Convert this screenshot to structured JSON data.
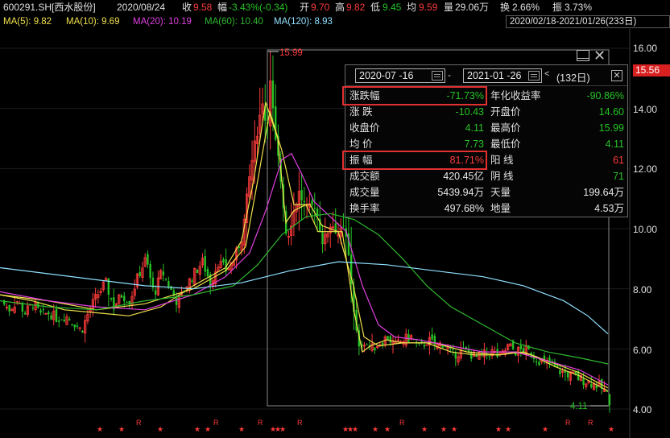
{
  "header": {
    "code": "600291.SH[西水股份]",
    "date": "2020/08/24",
    "close_label": "收",
    "close_value": "9.58",
    "change_label": "幅",
    "change_value": "-3.43%(-0.34)",
    "open_label": "开",
    "open_value": "9.70",
    "high_label": "高",
    "high_value": "9.82",
    "low_label": "低",
    "low_value": "9.45",
    "avg_label": "均",
    "avg_value": "9.59",
    "volume_label": "量",
    "volume_value": "29.06万",
    "turnover_label": "换",
    "turnover_value": "2.66%",
    "amplitude_label": "振",
    "amplitude_value": "3.73%"
  },
  "ma_bar": {
    "ma5": "MA(5): 9.82",
    "ma10": "MA(10): 9.69",
    "ma20": "MA(20): 10.19",
    "ma60": "MA(60): 10.40",
    "ma120": "MA(120): 8.93",
    "range": "2020/02/18-2021/01/26(233日)"
  },
  "colors": {
    "up": "#ff3b3b",
    "down": "#26c226",
    "ma5": "#f0e04c",
    "ma10": "#f0e04c",
    "ma20": "#e040e0",
    "ma60": "#2fb82f",
    "ma120": "#8fe0ff"
  },
  "chart_data": {
    "type": "candlestick",
    "x_range": [
      "2020/02/18",
      "2021/01/26"
    ],
    "trading_days": 233,
    "ylim": [
      4.0,
      16.0
    ],
    "y_ticks": [
      {
        "label": "16.00",
        "value": 16.0
      },
      {
        "label": "14.00",
        "value": 14.0
      },
      {
        "label": "12.00",
        "value": 12.0
      },
      {
        "label": "10.00",
        "value": 10.0
      },
      {
        "label": "8.00",
        "value": 8.0
      },
      {
        "label": "6.00",
        "value": 6.0
      },
      {
        "label": "4.00",
        "value": 4.0
      }
    ],
    "current_price": "15.56",
    "max_marker": "15.99",
    "min_marker": "4.11",
    "close_path": [
      [
        0,
        7.6
      ],
      [
        10,
        7.3
      ],
      [
        20,
        7.6
      ],
      [
        30,
        7.2
      ],
      [
        40,
        7.5
      ],
      [
        50,
        7.1
      ],
      [
        60,
        7.2
      ],
      [
        70,
        7.0
      ],
      [
        80,
        7.1
      ],
      [
        90,
        6.9
      ],
      [
        100,
        6.6
      ],
      [
        110,
        7.3
      ],
      [
        120,
        7.8
      ],
      [
        130,
        8.2
      ],
      [
        140,
        7.4
      ],
      [
        150,
        7.8
      ],
      [
        160,
        7.6
      ],
      [
        170,
        8.4
      ],
      [
        180,
        9.0
      ],
      [
        190,
        7.8
      ],
      [
        200,
        8.6
      ],
      [
        210,
        8.0
      ],
      [
        220,
        7.5
      ],
      [
        230,
        8.1
      ],
      [
        240,
        8.5
      ],
      [
        250,
        8.9
      ],
      [
        260,
        8.2
      ],
      [
        270,
        8.9
      ],
      [
        280,
        8.6
      ],
      [
        290,
        9.0
      ],
      [
        300,
        9.8
      ],
      [
        310,
        12.0
      ],
      [
        320,
        13.5
      ],
      [
        325,
        14.3
      ],
      [
        330,
        13.2
      ],
      [
        335,
        15.0
      ],
      [
        340,
        13.0
      ],
      [
        345,
        12.2
      ],
      [
        350,
        11.0
      ],
      [
        355,
        9.6
      ],
      [
        360,
        10.2
      ],
      [
        370,
        11.2
      ],
      [
        380,
        10.6
      ],
      [
        390,
        10.8
      ],
      [
        400,
        9.5
      ],
      [
        410,
        10.2
      ],
      [
        420,
        9.8
      ],
      [
        425,
        10.0
      ],
      [
        430,
        9.5
      ],
      [
        435,
        8.2
      ],
      [
        440,
        6.8
      ],
      [
        445,
        5.9
      ],
      [
        450,
        6.3
      ],
      [
        460,
        6.0
      ],
      [
        470,
        6.2
      ],
      [
        480,
        6.4
      ],
      [
        490,
        6.1
      ],
      [
        500,
        6.3
      ],
      [
        510,
        6.4
      ],
      [
        520,
        6.0
      ],
      [
        530,
        6.3
      ],
      [
        540,
        6.1
      ],
      [
        550,
        6.2
      ],
      [
        560,
        5.8
      ],
      [
        570,
        5.9
      ],
      [
        580,
        5.9
      ],
      [
        590,
        5.7
      ],
      [
        600,
        5.8
      ],
      [
        610,
        5.9
      ],
      [
        620,
        5.7
      ],
      [
        630,
        6.1
      ],
      [
        640,
        5.9
      ],
      [
        650,
        6.0
      ],
      [
        660,
        5.8
      ],
      [
        670,
        5.6
      ],
      [
        680,
        5.5
      ],
      [
        690,
        5.3
      ],
      [
        700,
        5.2
      ],
      [
        710,
        5.1
      ],
      [
        720,
        5.0
      ],
      [
        730,
        4.9
      ],
      [
        740,
        4.8
      ],
      [
        750,
        4.6
      ],
      [
        755,
        4.3
      ]
    ],
    "ma_lines": [
      {
        "name": "MA(5)",
        "color_key": "ma5",
        "points": [
          [
            0,
            7.8
          ],
          [
            40,
            7.6
          ],
          [
            80,
            7.3
          ],
          [
            120,
            7.2
          ],
          [
            160,
            7.1
          ],
          [
            200,
            7.4
          ],
          [
            240,
            8.1
          ],
          [
            280,
            8.7
          ],
          [
            300,
            9.6
          ],
          [
            315,
            11.6
          ],
          [
            330,
            14.2
          ],
          [
            345,
            13.0
          ],
          [
            355,
            10.2
          ],
          [
            365,
            10.6
          ],
          [
            380,
            10.8
          ],
          [
            395,
            9.9
          ],
          [
            410,
            9.9
          ],
          [
            425,
            9.9
          ],
          [
            440,
            7.2
          ],
          [
            450,
            5.9
          ],
          [
            460,
            6.1
          ],
          [
            480,
            6.3
          ],
          [
            500,
            6.2
          ],
          [
            530,
            6.2
          ],
          [
            560,
            5.9
          ],
          [
            590,
            5.8
          ],
          [
            620,
            5.8
          ],
          [
            640,
            5.9
          ],
          [
            660,
            5.8
          ],
          [
            690,
            5.4
          ],
          [
            720,
            5.1
          ],
          [
            755,
            4.6
          ]
        ]
      },
      {
        "name": "MA(10)",
        "color_key": "ma10",
        "points": [
          [
            0,
            7.8
          ],
          [
            60,
            7.6
          ],
          [
            120,
            7.3
          ],
          [
            180,
            7.5
          ],
          [
            240,
            8.0
          ],
          [
            280,
            8.6
          ],
          [
            305,
            9.4
          ],
          [
            320,
            11.6
          ],
          [
            335,
            13.9
          ],
          [
            350,
            12.6
          ],
          [
            365,
            10.8
          ],
          [
            385,
            10.8
          ],
          [
            400,
            10.1
          ],
          [
            420,
            9.9
          ],
          [
            438,
            8.2
          ],
          [
            452,
            6.4
          ],
          [
            470,
            6.1
          ],
          [
            500,
            6.2
          ],
          [
            540,
            6.2
          ],
          [
            580,
            5.9
          ],
          [
            620,
            5.8
          ],
          [
            650,
            5.9
          ],
          [
            690,
            5.5
          ],
          [
            720,
            5.2
          ],
          [
            755,
            4.7
          ]
        ]
      },
      {
        "name": "MA(20)",
        "color_key": "ma20",
        "points": [
          [
            0,
            7.9
          ],
          [
            60,
            7.6
          ],
          [
            120,
            7.4
          ],
          [
            180,
            7.3
          ],
          [
            240,
            7.8
          ],
          [
            280,
            8.4
          ],
          [
            310,
            9.2
          ],
          [
            330,
            10.6
          ],
          [
            350,
            12.3
          ],
          [
            362,
            12.5
          ],
          [
            375,
            11.8
          ],
          [
            390,
            10.9
          ],
          [
            410,
            10.4
          ],
          [
            430,
            9.9
          ],
          [
            450,
            8.1
          ],
          [
            470,
            6.8
          ],
          [
            490,
            6.4
          ],
          [
            520,
            6.3
          ],
          [
            560,
            6.1
          ],
          [
            600,
            5.9
          ],
          [
            640,
            5.9
          ],
          [
            680,
            5.6
          ],
          [
            720,
            5.3
          ],
          [
            755,
            4.8
          ]
        ]
      },
      {
        "name": "MA(60)",
        "color_key": "ma60",
        "points": [
          [
            0,
            7.6
          ],
          [
            60,
            7.4
          ],
          [
            120,
            7.3
          ],
          [
            180,
            7.6
          ],
          [
            240,
            7.8
          ],
          [
            290,
            8.1
          ],
          [
            320,
            8.8
          ],
          [
            350,
            9.8
          ],
          [
            380,
            10.4
          ],
          [
            410,
            10.5
          ],
          [
            440,
            10.3
          ],
          [
            470,
            9.8
          ],
          [
            500,
            9.0
          ],
          [
            530,
            8.1
          ],
          [
            560,
            7.4
          ],
          [
            600,
            6.8
          ],
          [
            640,
            6.2
          ],
          [
            680,
            5.9
          ],
          [
            720,
            5.7
          ],
          [
            755,
            5.5
          ]
        ]
      },
      {
        "name": "MA(120)",
        "color_key": "ma120",
        "points": [
          [
            0,
            8.7
          ],
          [
            60,
            8.5
          ],
          [
            120,
            8.3
          ],
          [
            180,
            8.1
          ],
          [
            240,
            8.0
          ],
          [
            300,
            8.2
          ],
          [
            360,
            8.6
          ],
          [
            420,
            8.9
          ],
          [
            480,
            8.8
          ],
          [
            540,
            8.6
          ],
          [
            600,
            8.4
          ],
          [
            650,
            8.1
          ],
          [
            700,
            7.6
          ],
          [
            730,
            7.1
          ],
          [
            755,
            6.5
          ]
        ]
      }
    ]
  },
  "popup": {
    "start_date": "2020-07 -16",
    "end_date": "2021-01 -26",
    "separator": "-",
    "trading_days": "(132日)",
    "close_symbol": "✕",
    "rows_left": [
      {
        "label": "涨跌幅",
        "value": "-71.73%",
        "color": "down"
      },
      {
        "label": "涨  跌",
        "value": "-10.43",
        "color": "down"
      },
      {
        "label": "收盘价",
        "value": "4.11",
        "color": "down"
      },
      {
        "label": "均  价",
        "value": "7.73",
        "color": "down"
      },
      {
        "label": "振  幅",
        "value": "81.71%",
        "color": "up"
      },
      {
        "label": "成交额",
        "value": "420.45亿",
        "color": "white"
      },
      {
        "label": "成交量",
        "value": "5439.94万",
        "color": "white"
      },
      {
        "label": "换手率",
        "value": "497.68%",
        "color": "white"
      }
    ],
    "rows_right": [
      {
        "label": "年化收益率",
        "value": "-90.86%",
        "color": "down"
      },
      {
        "label": "开盘价",
        "value": "14.60",
        "color": "down"
      },
      {
        "label": "最高价",
        "value": "15.99",
        "color": "down"
      },
      {
        "label": "最低价",
        "value": "4.11",
        "color": "down"
      },
      {
        "label": "阳  线",
        "value": "61",
        "color": "up"
      },
      {
        "label": "阴  线",
        "value": "71",
        "color": "down"
      },
      {
        "label": "天量",
        "value": "199.64万",
        "color": "white"
      },
      {
        "label": "地量",
        "value": "4.53万",
        "color": "white"
      }
    ]
  },
  "markers": {
    "star": "★",
    "r": "R"
  }
}
